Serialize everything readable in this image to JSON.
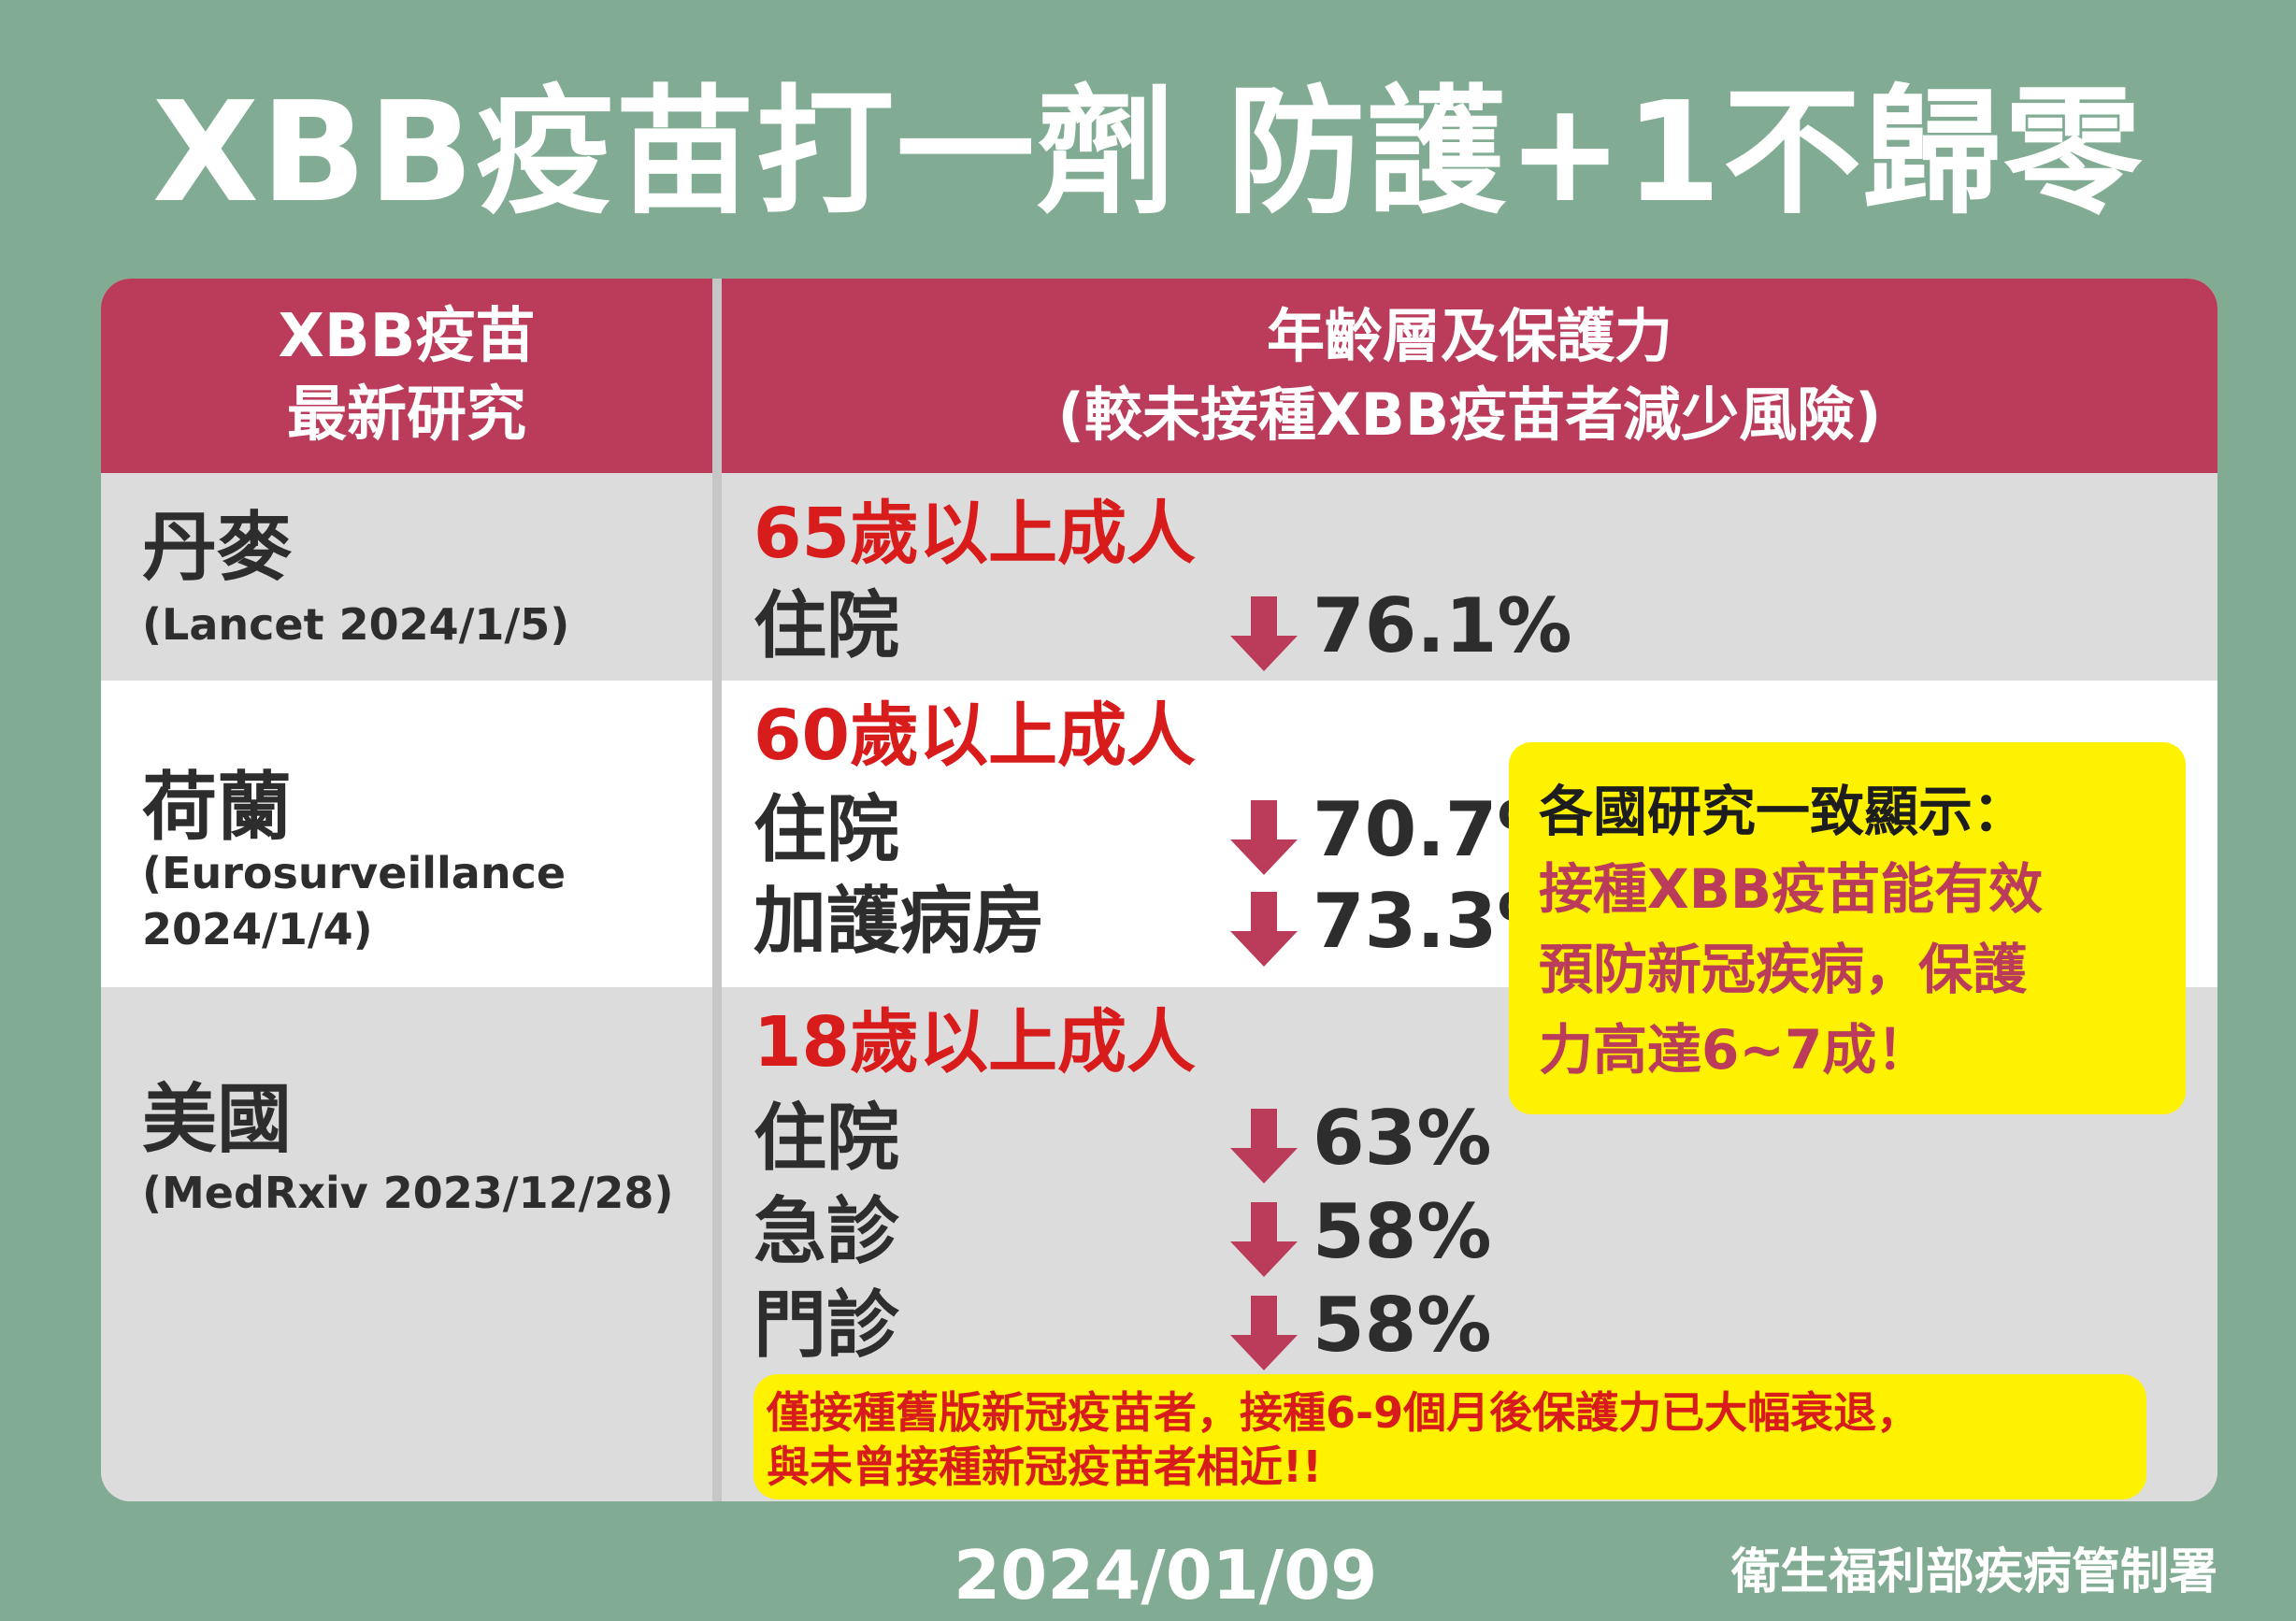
{
  "title": "XBB疫苗打一劑 防護+1不歸零",
  "table": {
    "header_left": [
      "XBB疫苗",
      "最新研究"
    ],
    "header_right": [
      "年齡層及保護力",
      "(較未接種XBB疫苗者減少風險)"
    ],
    "rows": [
      {
        "country": "丹麥",
        "source": "(Lancet 2024/1/5)",
        "age": "65歲以上成人",
        "metrics": [
          {
            "label": "住院",
            "arrow": "down-arrow-icon",
            "value": "76.1%"
          }
        ]
      },
      {
        "country": "荷蘭",
        "source": "(Eurosurveillance 2024/1/4)",
        "age": "60歲以上成人",
        "metrics": [
          {
            "label": "住院",
            "arrow": "down-arrow-icon",
            "value": "70.7%"
          },
          {
            "label": "加護病房",
            "arrow": "down-arrow-icon",
            "value": "73.3%"
          }
        ]
      },
      {
        "country": "美國",
        "source": "(MedRxiv 2023/12/28)",
        "age": "18歲以上成人",
        "metrics": [
          {
            "label": "住院",
            "arrow": "down-arrow-icon",
            "value": "63%"
          },
          {
            "label": "急診",
            "arrow": "down-arrow-icon",
            "value": "58%"
          },
          {
            "label": "門診",
            "arrow": "down-arrow-icon",
            "value": "58%"
          }
        ]
      }
    ]
  },
  "callout": {
    "heading": "各國研究一致顯示：",
    "body": "接種XBB疫苗能有效\n預防新冠疾病，保護\n力高達6~7成！"
  },
  "note": "僅接種舊版新冠疫苗者，接種6-9個月後保護力已大幅衰退，\n與未曾接種新冠疫苗者相近!!",
  "footer": {
    "date": "2024/01/09",
    "org": "衛生福利部疾病管制署"
  },
  "colors": {
    "background": "#81ac93",
    "header": "#bb3c5a",
    "age_text": "#d81c1c",
    "highlight": "#fff200",
    "arrow": "#bb3c5a"
  }
}
